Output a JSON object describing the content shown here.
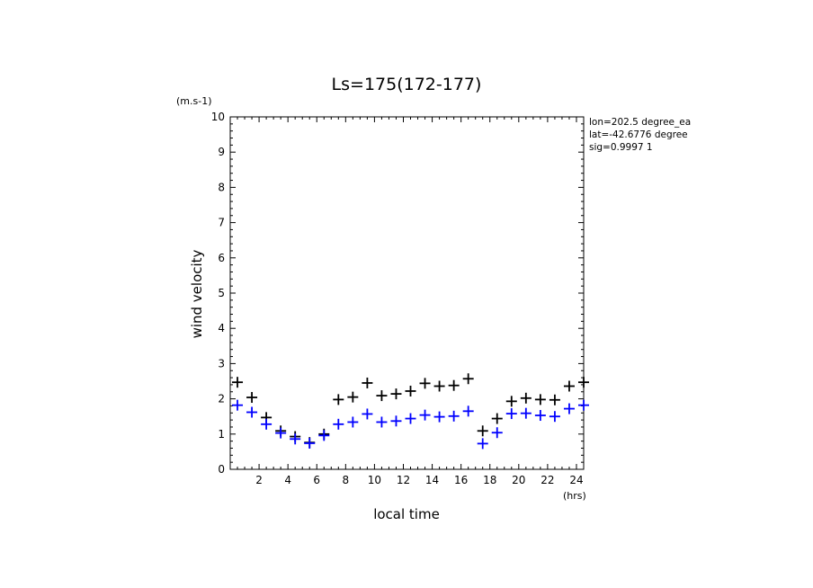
{
  "chart_data": {
    "type": "scatter",
    "title": "Ls=175(172-177)",
    "xlabel": "local time",
    "ylabel": "wind velocity",
    "xunit": "(hrs)",
    "yunit": "(m.s-1)",
    "xlim": [
      0,
      24.5
    ],
    "ylim": [
      0,
      10
    ],
    "xticks": [
      2,
      4,
      6,
      8,
      10,
      12,
      14,
      16,
      18,
      20,
      22,
      24
    ],
    "yticks": [
      0,
      1,
      2,
      3,
      4,
      5,
      6,
      7,
      8,
      9,
      10
    ],
    "info": [
      "lon=202.5 degree_ea",
      "lat=-42.6776 degree",
      "sig=0.9997 1"
    ],
    "marker": "plus",
    "grid": false,
    "series": [
      {
        "color": "#000000",
        "x": [
          0.5,
          1.5,
          2.5,
          3.5,
          4.5,
          5.5,
          6.5,
          7.5,
          8.5,
          9.5,
          10.5,
          11.5,
          12.5,
          13.5,
          14.5,
          15.5,
          16.5,
          17.5,
          18.5,
          19.5,
          20.5,
          21.5,
          22.5,
          23.5,
          24.5
        ],
        "y": [
          2.47,
          2.04,
          1.47,
          1.09,
          0.93,
          0.76,
          1.0,
          1.98,
          2.05,
          2.45,
          2.09,
          2.14,
          2.22,
          2.44,
          2.36,
          2.38,
          2.57,
          1.09,
          1.44,
          1.93,
          2.02,
          1.98,
          1.97,
          2.36,
          2.47
        ]
      },
      {
        "color": "#0000ff",
        "x": [
          0.5,
          1.5,
          2.5,
          3.5,
          4.5,
          5.5,
          6.5,
          7.5,
          8.5,
          9.5,
          10.5,
          11.5,
          12.5,
          13.5,
          14.5,
          15.5,
          16.5,
          17.5,
          18.5,
          19.5,
          20.5,
          21.5,
          22.5,
          23.5,
          24.5
        ],
        "y": [
          1.82,
          1.62,
          1.28,
          1.03,
          0.86,
          0.74,
          0.96,
          1.28,
          1.34,
          1.57,
          1.34,
          1.37,
          1.44,
          1.54,
          1.49,
          1.51,
          1.65,
          0.73,
          1.04,
          1.58,
          1.59,
          1.53,
          1.5,
          1.72,
          1.82
        ]
      }
    ]
  }
}
